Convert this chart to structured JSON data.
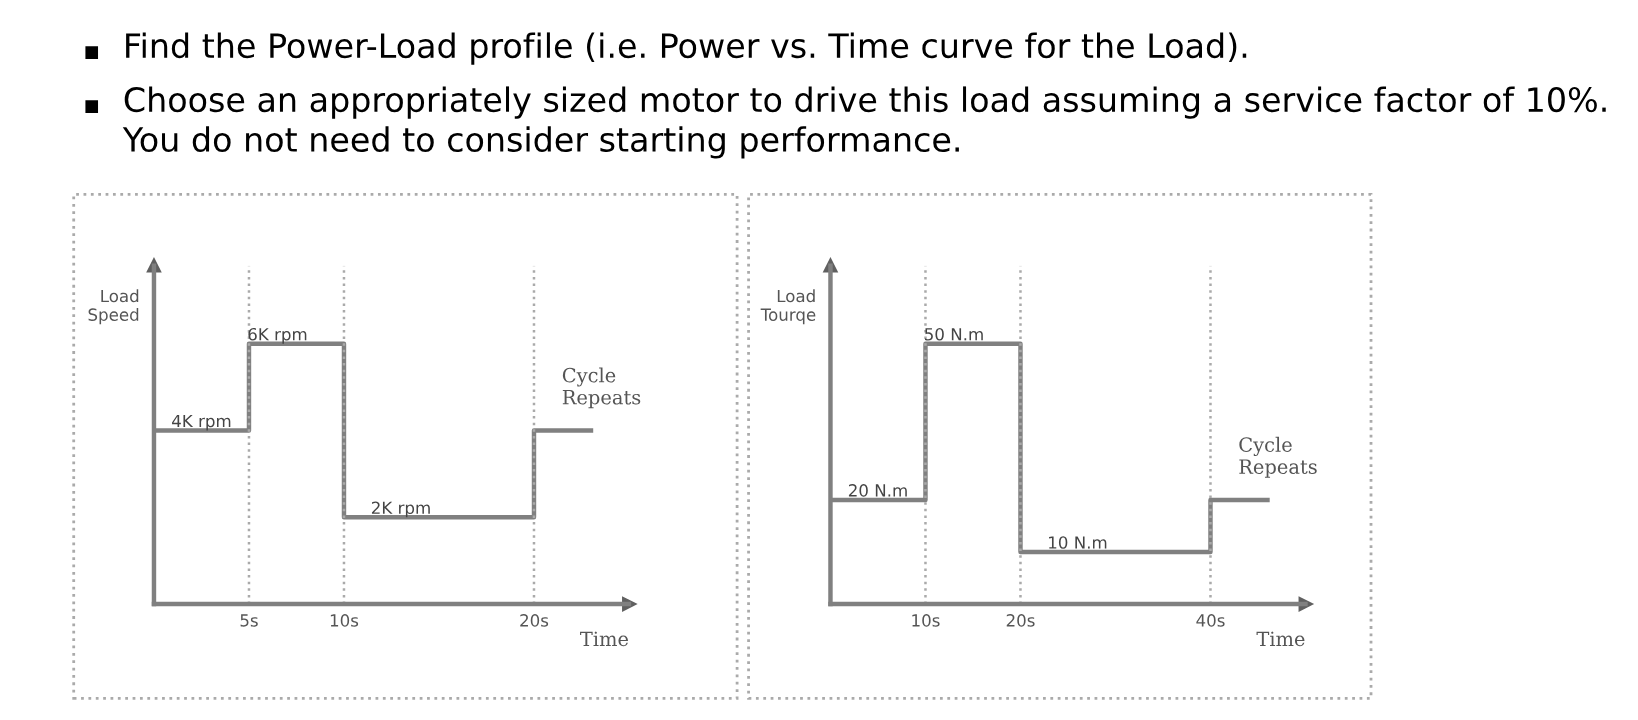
{
  "chart_data": [
    {
      "type": "step",
      "ylabel": "Load\nSpeed",
      "xlabel": "Time",
      "annotations": [
        "Find the Power-Load profile (i.e. Power vs. Time curve for the Load).",
        "Choose an appropriately sized motor to drive this load assuming a service factor of 10%.\nYou do not need to consider starting performance.",
        {
          "text": "Cycle\nRepeats",
          "x": 20,
          "y": 4000
        }
      ],
      "x": [
        0,
        5,
        10,
        20,
        23
      ],
      "values": [
        4000,
        6000,
        2000,
        4000,
        4000
      ],
      "value_labels": [
        "4K rpm",
        "6K rpm",
        "2K rpm",
        null,
        null
      ],
      "color": "#808080",
      "xlim": [
        0,
        25
      ],
      "xticks": [
        {
          "value": 5,
          "label": "5s"
        },
        {
          "value": 10,
          "label": "10s"
        },
        {
          "value": 20,
          "label": "20s"
        }
      ],
      "ref_lines": [
        {
          "axis": "x",
          "value": 5,
          "line_style": "dotted"
        },
        {
          "axis": "x",
          "value": 10,
          "line_style": "dotted"
        },
        {
          "axis": "x",
          "value": 20,
          "line_style": "dotted"
        }
      ],
      "tick_labels": "x",
      "grid": false,
      "legend": false
    },
    {
      "type": "step",
      "ylabel": "Load\nTourqe",
      "xlabel": "Time",
      "annotations": [
        {
          "text": "Cycle\nRepeats",
          "x": 40,
          "y": 20
        }
      ],
      "x": [
        0,
        10,
        20,
        40,
        46
      ],
      "values": [
        20,
        50,
        10,
        20,
        20
      ],
      "value_labels": [
        "20 N.m",
        "50 N.m",
        "10 N.m",
        null,
        null
      ],
      "color": "#808080",
      "xlim": [
        0,
        50
      ],
      "xticks": [
        {
          "value": 10,
          "label": "10s"
        },
        {
          "value": 20,
          "label": "20s"
        },
        {
          "value": 40,
          "label": "40s"
        }
      ],
      "ref_lines": [
        {
          "axis": "x",
          "value": 10,
          "line_style": "dotted"
        },
        {
          "axis": "x",
          "value": 20,
          "line_style": "dotted"
        },
        {
          "axis": "x",
          "value": 40,
          "line_style": "dotted"
        }
      ],
      "tick_labels": "x",
      "grid": false,
      "legend": false
    }
  ]
}
